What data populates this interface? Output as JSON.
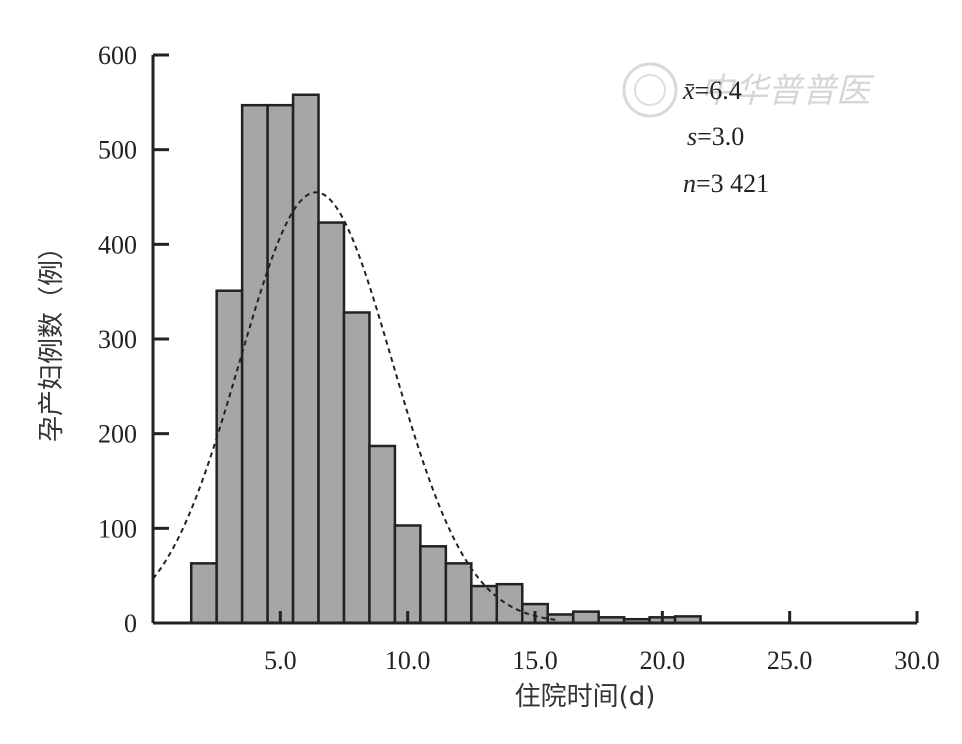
{
  "chart_data": {
    "type": "bar",
    "title": "",
    "xlabel": "住院时间(d)",
    "ylabel": "孕产妇例数（例）",
    "xlim": [
      0,
      30
    ],
    "ylim": [
      0,
      600
    ],
    "bin_width": 1,
    "bins": [
      {
        "x0": 1.5,
        "x1": 2.5,
        "count": 63
      },
      {
        "x0": 2.5,
        "x1": 3.5,
        "count": 351
      },
      {
        "x0": 3.5,
        "x1": 4.5,
        "count": 547
      },
      {
        "x0": 4.5,
        "x1": 5.5,
        "count": 547
      },
      {
        "x0": 5.5,
        "x1": 6.5,
        "count": 558
      },
      {
        "x0": 6.5,
        "x1": 7.5,
        "count": 423
      },
      {
        "x0": 7.5,
        "x1": 8.5,
        "count": 328
      },
      {
        "x0": 8.5,
        "x1": 9.5,
        "count": 187
      },
      {
        "x0": 9.5,
        "x1": 10.5,
        "count": 103
      },
      {
        "x0": 10.5,
        "x1": 11.5,
        "count": 81
      },
      {
        "x0": 11.5,
        "x1": 12.5,
        "count": 63
      },
      {
        "x0": 12.5,
        "x1": 13.5,
        "count": 39
      },
      {
        "x0": 13.5,
        "x1": 14.5,
        "count": 41
      },
      {
        "x0": 14.5,
        "x1": 15.5,
        "count": 20
      },
      {
        "x0": 15.5,
        "x1": 16.5,
        "count": 9
      },
      {
        "x0": 16.5,
        "x1": 17.5,
        "count": 12
      },
      {
        "x0": 17.5,
        "x1": 18.5,
        "count": 6
      },
      {
        "x0": 18.5,
        "x1": 19.5,
        "count": 4
      },
      {
        "x0": 19.5,
        "x1": 20.5,
        "count": 6
      },
      {
        "x0": 20.5,
        "x1": 21.5,
        "count": 7
      }
    ],
    "x_ticks": [
      5,
      10,
      15,
      20,
      25,
      30
    ],
    "x_tick_labels": [
      "5.0",
      "10.0",
      "15.0",
      "20.0",
      "25.0",
      "30.0"
    ],
    "y_ticks": [
      0,
      100,
      200,
      300,
      400,
      500,
      600
    ],
    "y_tick_labels": [
      "0",
      "100",
      "200",
      "300",
      "400",
      "500",
      "600"
    ],
    "normal_curve": {
      "mean": 6.4,
      "sd": 3.0,
      "n": 3421,
      "style": "dashed"
    },
    "bar_color": "#a6a5a8",
    "bar_edge_color": "#222222",
    "grid": false,
    "annotations": [
      {
        "var": "x̄",
        "value": "=6.4"
      },
      {
        "var": "s",
        "value": "=3.0"
      },
      {
        "var": "n",
        "value": "=3 421"
      }
    ]
  },
  "watermark": {
    "text": "中华普普医"
  }
}
